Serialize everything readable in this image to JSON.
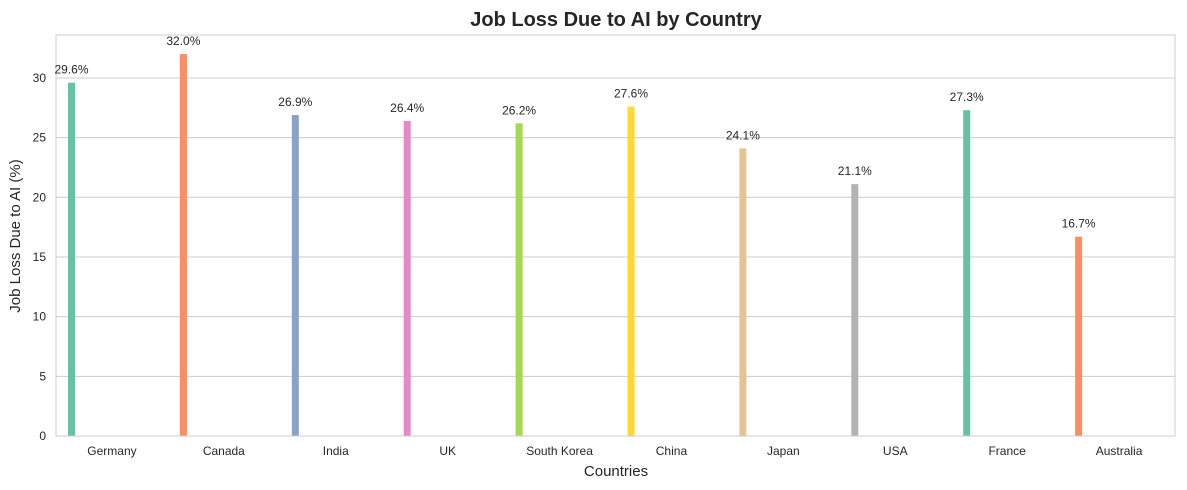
{
  "chart_data": {
    "type": "bar",
    "title": "Job Loss Due to AI by Country",
    "xlabel": "Countries",
    "ylabel": "Job Loss Due to AI (%)",
    "categories": [
      "Germany",
      "Canada",
      "India",
      "UK",
      "South Korea",
      "China",
      "Japan",
      "USA",
      "France",
      "Australia"
    ],
    "values": [
      29.6,
      32.0,
      26.9,
      26.4,
      26.2,
      27.6,
      24.1,
      21.1,
      27.3,
      16.7
    ],
    "data_labels": [
      "29.6%",
      "32.0%",
      "26.9%",
      "26.4%",
      "26.2%",
      "27.6%",
      "24.1%",
      "21.1%",
      "27.3%",
      "16.7%"
    ],
    "colors": [
      "#66c2a5",
      "#fc8d62",
      "#8da0cb",
      "#e78ac3",
      "#a6d854",
      "#ffd92f",
      "#e5c494",
      "#b3b3b3",
      "#66c2a5",
      "#fc8d62"
    ],
    "ylim": [
      0,
      33.6
    ],
    "yticks": [
      0,
      5,
      10,
      15,
      20,
      25,
      30
    ],
    "grid": "horizontal",
    "legend": "none"
  }
}
